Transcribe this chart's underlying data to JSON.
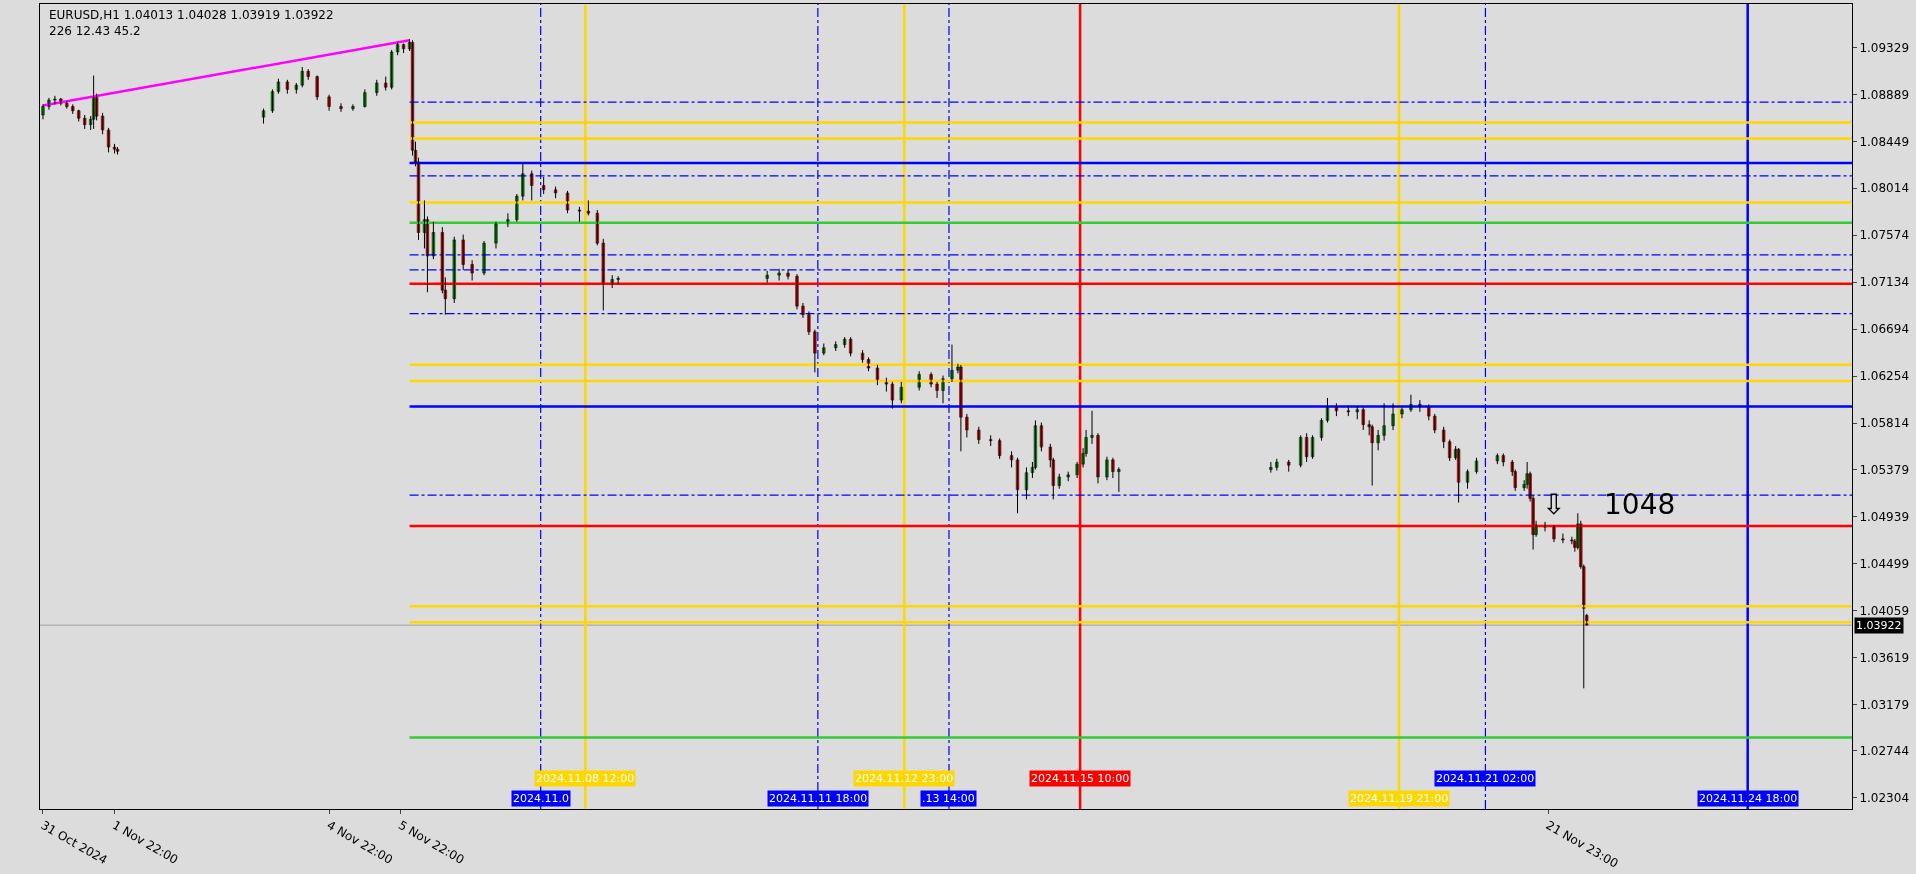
{
  "chart_data": {
    "type": "candlestick",
    "title": "EURUSD,H1 1.04013 1.04028 1.03919 1.03922",
    "subtitle": "226 12.43 45.2",
    "x": [
      "2024-10-31T22:00",
      "2024-11-01T00:00",
      "2024-11-01T02:00",
      "2024-11-01T04:00",
      "2024-11-01T06:00",
      "2024-11-01T08:00",
      "2024-11-01T10:00",
      "2024-11-01T12:00",
      "2024-11-01T14:00",
      "2024-11-01T15:00",
      "2024-11-01T16:00",
      "2024-11-01T18:00",
      "2024-11-01T20:00",
      "2024-11-01T22:00",
      "2024-11-01T23:00",
      "2024-11-04T00:00",
      "2024-11-04T03:00",
      "2024-11-04T05:00",
      "2024-11-04T08:00",
      "2024-11-04T11:00",
      "2024-11-04T13:00",
      "2024-11-04T15:00",
      "2024-11-04T18:00",
      "2024-11-04T22:00",
      "2024-11-05T02:00",
      "2024-11-05T06:00",
      "2024-11-05T10:00",
      "2024-11-05T14:00",
      "2024-11-05T17:00",
      "2024-11-05T19:00",
      "2024-11-05T21:00",
      "2024-11-05T23:00",
      "2024-11-06T01:00",
      "2024-11-06T02:00",
      "2024-11-06T03:00",
      "2024-11-06T04:00",
      "2024-11-06T06:00",
      "2024-11-06T07:00",
      "2024-11-06T09:00",
      "2024-11-06T12:00",
      "2024-11-06T13:00",
      "2024-11-06T16:00",
      "2024-11-06T19:00",
      "2024-11-06T22:00",
      "2024-11-07T02:00",
      "2024-11-07T06:00",
      "2024-11-07T10:00",
      "2024-11-07T13:00",
      "2024-11-07T15:00",
      "2024-11-07T18:00",
      "2024-11-07T22:00",
      "2024-11-08T02:00",
      "2024-11-08T06:00",
      "2024-11-08T10:00",
      "2024-11-08T13:00",
      "2024-11-08T16:00",
      "2024-11-08T18:00",
      "2024-11-08T21:00",
      "2024-11-08T23:00",
      "2024-11-11T01:00",
      "2024-11-11T05:00",
      "2024-11-11T08:00",
      "2024-11-11T11:00",
      "2024-11-11T13:00",
      "2024-11-11T15:00",
      "2024-11-11T17:00",
      "2024-11-11T20:00",
      "2024-11-12T00:00",
      "2024-11-12T03:00",
      "2024-11-12T05:00",
      "2024-11-12T09:00",
      "2024-11-12T11:00",
      "2024-11-12T14:00",
      "2024-11-12T17:00",
      "2024-11-12T19:00",
      "2024-11-12T22:00",
      "2024-11-13T04:00",
      "2024-11-13T08:00",
      "2024-11-13T10:00",
      "2024-11-13T12:00",
      "2024-11-13T15:00",
      "2024-11-13T17:00",
      "2024-11-13T18:00",
      "2024-11-13T20:00",
      "2024-11-14T00:00",
      "2024-11-14T04:00",
      "2024-11-14T07:00",
      "2024-11-14T11:00",
      "2024-11-14T13:00",
      "2024-11-14T16:00",
      "2024-11-14T18:00",
      "2024-11-14T19:00",
      "2024-11-14T21:00",
      "2024-11-15T00:00",
      "2024-11-15T01:00",
      "2024-11-15T03:00",
      "2024-11-15T06:00",
      "2024-11-15T09:00",
      "2024-11-15T11:00",
      "2024-11-15T12:00",
      "2024-11-15T14:00",
      "2024-11-15T16:00",
      "2024-11-15T19:00",
      "2024-11-15T21:00",
      "2024-11-15T23:00",
      "2024-11-18T02:00",
      "2024-11-18T04:00",
      "2024-11-18T08:00",
      "2024-11-18T12:00",
      "2024-11-18T14:00",
      "2024-11-18T16:00",
      "2024-11-18T19:00",
      "2024-11-18T21:00",
      "2024-11-19T00:00",
      "2024-11-19T04:00",
      "2024-11-19T07:00",
      "2024-11-19T09:00",
      "2024-11-19T11:00",
      "2024-11-19T12:00",
      "2024-11-19T14:00",
      "2024-11-19T16:00",
      "2024-11-19T19:00",
      "2024-11-19T22:00",
      "2024-11-20T01:00",
      "2024-11-20T04:00",
      "2024-11-20T07:00",
      "2024-11-20T09:00",
      "2024-11-20T12:00",
      "2024-11-20T14:00",
      "2024-11-20T16:00",
      "2024-11-20T17:00",
      "2024-11-20T20:00",
      "2024-11-20T23:00",
      "2024-11-21T06:00",
      "2024-11-21T08:00",
      "2024-11-21T11:00",
      "2024-11-21T12:00",
      "2024-11-21T15:00",
      "2024-11-21T16:00",
      "2024-11-21T17:00",
      "2024-11-21T18:00",
      "2024-11-21T19:00",
      "2024-11-21T22:00",
      "2024-11-22T01:00",
      "2024-11-22T04:00",
      "2024-11-22T07:00",
      "2024-11-22T08:00",
      "2024-11-22T09:00",
      "2024-11-22T10:00",
      "2024-11-22T11:00",
      "2024-11-22T12:00"
    ],
    "ohlc": [
      [
        1.087,
        1.088,
        1.0866,
        1.0878
      ],
      [
        1.0878,
        1.0886,
        1.0875,
        1.0884
      ],
      [
        1.0884,
        1.0888,
        1.088,
        1.0885
      ],
      [
        1.0885,
        1.0886,
        1.0879,
        1.0881
      ],
      [
        1.0881,
        1.0883,
        1.0876,
        1.0878
      ],
      [
        1.0878,
        1.088,
        1.0871,
        1.0874
      ],
      [
        1.0874,
        1.0875,
        1.0864,
        1.0867
      ],
      [
        1.0867,
        1.087,
        1.0857,
        1.0861
      ],
      [
        1.0861,
        1.0869,
        1.0856,
        1.0866
      ],
      [
        1.0866,
        1.0907,
        1.0857,
        1.0887
      ],
      [
        1.0887,
        1.089,
        1.0865,
        1.0869
      ],
      [
        1.0869,
        1.0872,
        1.0852,
        1.0856
      ],
      [
        1.0856,
        1.0858,
        1.0835,
        1.084
      ],
      [
        1.084,
        1.0843,
        1.0834,
        1.0838
      ],
      [
        1.0838,
        1.084,
        1.0833,
        1.0836
      ],
      [
        1.0868,
        1.0876,
        1.0862,
        1.0874
      ],
      [
        1.0874,
        1.0894,
        1.0872,
        1.0892
      ],
      [
        1.0892,
        1.0904,
        1.089,
        1.0901
      ],
      [
        1.0901,
        1.0903,
        1.089,
        1.0894
      ],
      [
        1.0894,
        1.09,
        1.089,
        1.0898
      ],
      [
        1.0898,
        1.0915,
        1.0896,
        1.0911
      ],
      [
        1.0911,
        1.0913,
        1.0903,
        1.0906
      ],
      [
        1.0906,
        1.0907,
        1.0884,
        1.0887
      ],
      [
        1.0887,
        1.0889,
        1.0874,
        1.0878
      ],
      [
        1.0878,
        1.0881,
        1.0873,
        1.0876
      ],
      [
        1.0876,
        1.088,
        1.0874,
        1.0878
      ],
      [
        1.0878,
        1.0894,
        1.0877,
        1.0891
      ],
      [
        1.0891,
        1.0903,
        1.0888,
        1.09
      ],
      [
        1.09,
        1.0906,
        1.0893,
        1.0896
      ],
      [
        1.0896,
        1.0931,
        1.0894,
        1.0929
      ],
      [
        1.0929,
        1.0938,
        1.0926,
        1.0936
      ],
      [
        1.0936,
        1.0937,
        1.0928,
        1.0932
      ],
      [
        1.0932,
        1.0941,
        1.093,
        1.0938
      ],
      [
        1.0938,
        1.094,
        1.0832,
        1.0837
      ],
      [
        1.0837,
        1.0845,
        1.0822,
        1.0826
      ],
      [
        1.0826,
        1.083,
        1.0753,
        1.076
      ],
      [
        1.076,
        1.079,
        1.0745,
        1.0772
      ],
      [
        1.0772,
        1.0775,
        1.0704,
        1.0738
      ],
      [
        1.0738,
        1.077,
        1.0735,
        1.076
      ],
      [
        1.076,
        1.0765,
        1.0703,
        1.0706
      ],
      [
        1.0706,
        1.0718,
        1.0683,
        1.0698
      ],
      [
        1.0698,
        1.0756,
        1.0694,
        1.0753
      ],
      [
        1.0753,
        1.0758,
        1.0725,
        1.073
      ],
      [
        1.073,
        1.0734,
        1.0715,
        1.0722
      ],
      [
        1.0722,
        1.0752,
        1.072,
        1.075
      ],
      [
        1.075,
        1.077,
        1.0745,
        1.0768
      ],
      [
        1.0768,
        1.0778,
        1.0765,
        1.0772
      ],
      [
        1.0772,
        1.0796,
        1.077,
        1.0794
      ],
      [
        1.0794,
        1.0825,
        1.079,
        1.0815
      ],
      [
        1.0815,
        1.0818,
        1.079,
        1.0804
      ],
      [
        1.0804,
        1.0812,
        1.0796,
        1.08
      ],
      [
        1.08,
        1.0803,
        1.0792,
        1.0797
      ],
      [
        1.0797,
        1.0799,
        1.0778,
        1.0781
      ],
      [
        1.0781,
        1.0784,
        1.077,
        1.078
      ],
      [
        1.078,
        1.079,
        1.0776,
        1.0778
      ],
      [
        1.0778,
        1.0781,
        1.0748,
        1.075
      ],
      [
        1.075,
        1.0754,
        1.0687,
        1.0713
      ],
      [
        1.0713,
        1.072,
        1.0708,
        1.0716
      ],
      [
        1.0716,
        1.0719,
        1.0712,
        1.0717
      ],
      [
        1.0717,
        1.0724,
        1.0713,
        1.072
      ],
      [
        1.072,
        1.0726,
        1.0715,
        1.0722
      ],
      [
        1.0722,
        1.0725,
        1.0716,
        1.0719
      ],
      [
        1.0719,
        1.0721,
        1.0688,
        1.0691
      ],
      [
        1.0691,
        1.0694,
        1.068,
        1.0683
      ],
      [
        1.0683,
        1.0686,
        1.0664,
        1.0667
      ],
      [
        1.0667,
        1.0669,
        1.0629,
        1.0647
      ],
      [
        1.0647,
        1.0656,
        1.0645,
        1.0652
      ],
      [
        1.0652,
        1.0658,
        1.0649,
        1.0655
      ],
      [
        1.0655,
        1.0662,
        1.0652,
        1.066
      ],
      [
        1.066,
        1.0662,
        1.0644,
        1.0647
      ],
      [
        1.0647,
        1.065,
        1.0638,
        1.0641
      ],
      [
        1.0641,
        1.0643,
        1.063,
        1.0633
      ],
      [
        1.0633,
        1.0636,
        1.0617,
        1.0621
      ],
      [
        1.0621,
        1.0624,
        1.0611,
        1.0618
      ],
      [
        1.0618,
        1.062,
        1.0595,
        1.0603
      ],
      [
        1.0603,
        1.062,
        1.06,
        1.0615
      ],
      [
        1.0615,
        1.063,
        1.0612,
        1.0627
      ],
      [
        1.0627,
        1.0629,
        1.0615,
        1.0618
      ],
      [
        1.0618,
        1.062,
        1.0605,
        1.0612
      ],
      [
        1.0612,
        1.0626,
        1.06,
        1.0623
      ],
      [
        1.0623,
        1.0655,
        1.062,
        1.0631
      ],
      [
        1.0631,
        1.0637,
        1.0628,
        1.0634
      ],
      [
        1.0634,
        1.0636,
        1.0555,
        1.0587
      ],
      [
        1.0587,
        1.059,
        1.0568,
        1.0575
      ],
      [
        1.0575,
        1.0578,
        1.0562,
        1.0566
      ],
      [
        1.0566,
        1.057,
        1.056,
        1.0565
      ],
      [
        1.0565,
        1.0567,
        1.0548,
        1.0551
      ],
      [
        1.0551,
        1.0555,
        1.054,
        1.0547
      ],
      [
        1.0547,
        1.0549,
        1.0497,
        1.0519
      ],
      [
        1.0519,
        1.054,
        1.051,
        1.0535
      ],
      [
        1.0535,
        1.0545,
        1.053,
        1.054
      ],
      [
        1.054,
        1.0584,
        1.0538,
        1.0579
      ],
      [
        1.0579,
        1.0582,
        1.0555,
        1.0559
      ],
      [
        1.0559,
        1.0562,
        1.054,
        1.0547
      ],
      [
        1.0547,
        1.0549,
        1.051,
        1.0523
      ],
      [
        1.0523,
        1.0534,
        1.052,
        1.0531
      ],
      [
        1.0531,
        1.0536,
        1.0527,
        1.0533
      ],
      [
        1.0533,
        1.0545,
        1.053,
        1.0543
      ],
      [
        1.0543,
        1.0558,
        1.054,
        1.0553
      ],
      [
        1.0553,
        1.0575,
        1.055,
        1.0568
      ],
      [
        1.0568,
        1.0593,
        1.0562,
        1.057
      ],
      [
        1.057,
        1.0572,
        1.0525,
        1.0531
      ],
      [
        1.0531,
        1.055,
        1.0528,
        1.0547
      ],
      [
        1.0547,
        1.0549,
        1.053,
        1.0536
      ],
      [
        1.0536,
        1.054,
        1.0517,
        1.0538
      ],
      [
        1.0538,
        1.0545,
        1.0535,
        1.054
      ],
      [
        1.054,
        1.0548,
        1.0537,
        1.0545
      ],
      [
        1.0545,
        1.0547,
        1.0536,
        1.0542
      ],
      [
        1.0542,
        1.057,
        1.054,
        1.0568
      ],
      [
        1.0568,
        1.0572,
        1.0545,
        1.055
      ],
      [
        1.055,
        1.057,
        1.0548,
        1.0568
      ],
      [
        1.0568,
        1.0586,
        1.0565,
        1.0584
      ],
      [
        1.0584,
        1.0605,
        1.0582,
        1.0597
      ],
      [
        1.0597,
        1.06,
        1.0588,
        1.0593
      ],
      [
        1.0593,
        1.0598,
        1.0588,
        1.0592
      ],
      [
        1.0592,
        1.0597,
        1.0585,
        1.0594
      ],
      [
        1.0594,
        1.0596,
        1.0575,
        1.058
      ],
      [
        1.058,
        1.0584,
        1.057,
        1.0578
      ],
      [
        1.0578,
        1.058,
        1.0523,
        1.0563
      ],
      [
        1.0563,
        1.0575,
        1.0556,
        1.057
      ],
      [
        1.057,
        1.06,
        1.0565,
        1.0579
      ],
      [
        1.0579,
        1.06,
        1.0575,
        1.059
      ],
      [
        1.059,
        1.0596,
        1.0586,
        1.0594
      ],
      [
        1.0594,
        1.0608,
        1.0592,
        1.0599
      ],
      [
        1.0599,
        1.0603,
        1.0592,
        1.0597
      ],
      [
        1.0597,
        1.0599,
        1.0584,
        1.0588
      ],
      [
        1.0588,
        1.059,
        1.0572,
        1.0575
      ],
      [
        1.0575,
        1.0578,
        1.0558,
        1.0564
      ],
      [
        1.0564,
        1.0566,
        1.0546,
        1.0549
      ],
      [
        1.0549,
        1.056,
        1.0547,
        1.0557
      ],
      [
        1.0557,
        1.0558,
        1.0507,
        1.0526
      ],
      [
        1.0526,
        1.0538,
        1.052,
        1.0536
      ],
      [
        1.0536,
        1.0549,
        1.0534,
        1.0546
      ],
      [
        1.0546,
        1.0553,
        1.0543,
        1.0551
      ],
      [
        1.0551,
        1.0553,
        1.0541,
        1.0545
      ],
      [
        1.0545,
        1.0547,
        1.0532,
        1.0536
      ],
      [
        1.0536,
        1.0538,
        1.0518,
        1.0521
      ],
      [
        1.0521,
        1.0528,
        1.0518,
        1.0524
      ],
      [
        1.0524,
        1.0545,
        1.052,
        1.0534
      ],
      [
        1.0534,
        1.0536,
        1.0508,
        1.0511
      ],
      [
        1.0511,
        1.0514,
        1.0463,
        1.0477
      ],
      [
        1.0477,
        1.049,
        1.0475,
        1.0486
      ],
      [
        1.0486,
        1.0489,
        1.048,
        1.0484
      ],
      [
        1.0484,
        1.0486,
        1.047,
        1.0473
      ],
      [
        1.0473,
        1.0478,
        1.0469,
        1.0472
      ],
      [
        1.0472,
        1.0475,
        1.0468,
        1.0471
      ],
      [
        1.0471,
        1.0473,
        1.0461,
        1.0465
      ],
      [
        1.0465,
        1.0497,
        1.0463,
        1.0487
      ],
      [
        1.0487,
        1.049,
        1.0445,
        1.0447
      ],
      [
        1.0447,
        1.0449,
        1.0333,
        1.0408
      ],
      [
        1.04013,
        1.04028,
        1.03919,
        1.03922
      ]
    ],
    "series": [
      {
        "type": "line",
        "color": "#ff00ff",
        "x": [
          "2024-10-31T22:00",
          "2024-11-06T01:00"
        ],
        "values": [
          1.0879,
          1.094
        ],
        "line_style": "solid"
      },
      {
        "type": "line",
        "color": "#0000ff",
        "x": [
          "2024-11-06T01:00",
          "2024-11-26T05:00"
        ],
        "values": [
          1.0882,
          1.0882
        ],
        "line_style": "dashed"
      },
      {
        "type": "line",
        "color": "#ffd700",
        "x": [
          "2024-11-06T01:00",
          "2024-11-26T05:00"
        ],
        "values": [
          1.0863,
          1.0863
        ],
        "line_style": "solid"
      },
      {
        "type": "line",
        "color": "#ffd700",
        "x": [
          "2024-11-06T01:00",
          "2024-11-26T05:00"
        ],
        "values": [
          1.0848,
          1.0848
        ],
        "line_style": "solid"
      },
      {
        "type": "line",
        "color": "#0000ff",
        "x": [
          "2024-11-06T01:00",
          "2024-11-26T05:00"
        ],
        "values": [
          1.0825,
          1.0825
        ],
        "line_style": "solid"
      },
      {
        "type": "line",
        "color": "#0000ff",
        "x": [
          "2024-11-06T01:00",
          "2024-11-26T05:00"
        ],
        "values": [
          1.0813,
          1.0813
        ],
        "line_style": "dashed"
      },
      {
        "type": "line",
        "color": "#ffd700",
        "x": [
          "2024-11-06T01:00",
          "2024-11-26T05:00"
        ],
        "values": [
          1.0788,
          1.0788
        ],
        "line_style": "solid"
      },
      {
        "type": "line",
        "color": "#32cd32",
        "x": [
          "2024-11-06T01:00",
          "2024-11-26T05:00"
        ],
        "values": [
          1.0769,
          1.0769
        ],
        "line_style": "solid"
      },
      {
        "type": "line",
        "color": "#0000ff",
        "x": [
          "2024-11-06T01:00",
          "2024-11-26T05:00"
        ],
        "values": [
          1.0739,
          1.0739
        ],
        "line_style": "dashed"
      },
      {
        "type": "line",
        "color": "#0000ff",
        "x": [
          "2024-11-06T01:00",
          "2024-11-26T05:00"
        ],
        "values": [
          1.0725,
          1.0725
        ],
        "line_style": "dashed"
      },
      {
        "type": "line",
        "color": "#ff0000",
        "x": [
          "2024-11-06T01:00",
          "2024-11-26T05:00"
        ],
        "values": [
          1.0712,
          1.0712
        ],
        "line_style": "solid"
      },
      {
        "type": "line",
        "color": "#0000ff",
        "x": [
          "2024-11-06T01:00",
          "2024-11-26T05:00"
        ],
        "values": [
          1.0684,
          1.0684
        ],
        "line_style": "dashed"
      },
      {
        "type": "line",
        "color": "#ffd700",
        "x": [
          "2024-11-06T01:00",
          "2024-11-26T05:00"
        ],
        "values": [
          1.0636,
          1.0636
        ],
        "line_style": "solid"
      },
      {
        "type": "line",
        "color": "#ffd700",
        "x": [
          "2024-11-06T01:00",
          "2024-11-26T05:00"
        ],
        "values": [
          1.0621,
          1.0621
        ],
        "line_style": "solid"
      },
      {
        "type": "line",
        "color": "#0000ff",
        "x": [
          "2024-11-06T01:00",
          "2024-11-26T05:00"
        ],
        "values": [
          1.0597,
          1.0597
        ],
        "line_style": "solid"
      },
      {
        "type": "line",
        "color": "#0000ff",
        "x": [
          "2024-11-06T01:00",
          "2024-11-26T05:00"
        ],
        "values": [
          1.0514,
          1.0514
        ],
        "line_style": "dashed"
      },
      {
        "type": "line",
        "color": "#ff0000",
        "x": [
          "2024-11-06T01:00",
          "2024-11-26T05:00"
        ],
        "values": [
          1.0485,
          1.0485
        ],
        "line_style": "solid"
      },
      {
        "type": "line",
        "color": "#ffd700",
        "x": [
          "2024-11-06T01:00",
          "2024-11-26T05:00"
        ],
        "values": [
          1.041,
          1.041
        ],
        "line_style": "solid"
      },
      {
        "type": "line",
        "color": "#ffd700",
        "x": [
          "2024-11-06T01:00",
          "2024-11-26T05:00"
        ],
        "values": [
          1.0395,
          1.0395
        ],
        "line_style": "solid"
      },
      {
        "type": "line",
        "color": "#32cd32",
        "x": [
          "2024-11-06T01:00",
          "2024-11-26T05:00"
        ],
        "values": [
          1.0287,
          1.0287
        ],
        "line_style": "solid"
      }
    ],
    "ref_lines": [
      {
        "axis": "y",
        "value": 1.03922,
        "label": "1.03922",
        "color": "#9a9aa8",
        "line_style": "solid"
      },
      {
        "axis": "x",
        "value": "2024-11-07T21:00",
        "label": "2024.11.0",
        "color": "#0000ff",
        "line_style": "dashed"
      },
      {
        "axis": "x",
        "value": "2024-11-08T12:00",
        "label": "2024.11.08 12:00",
        "color": "#ffd700",
        "line_style": "solid"
      },
      {
        "axis": "x",
        "value": "2024-11-11T18:00",
        "label": "2024.11.11 18:00",
        "color": "#0000ff",
        "line_style": "dashed"
      },
      {
        "axis": "x",
        "value": "2024-11-12T23:00",
        "label": "2024.11.12 23:00",
        "color": "#ffd700",
        "line_style": "solid"
      },
      {
        "axis": "x",
        "value": "2024-11-13T14:00",
        "label": ".13 14:00",
        "color": "#0000ff",
        "line_style": "dashed"
      },
      {
        "axis": "x",
        "value": "2024-11-15T10:00",
        "label": "2024.11.15 10:00",
        "color": "#ff0000",
        "line_style": "solid"
      },
      {
        "axis": "x",
        "value": "2024-11-19T21:00",
        "label": "2024.11.19 21:00",
        "color": "#ffd700",
        "line_style": "solid"
      },
      {
        "axis": "x",
        "value": "2024-11-21T02:00",
        "label": "2024.11.21 02:00",
        "color": "#0000ff",
        "line_style": "dashed"
      },
      {
        "axis": "x",
        "value": "2024-11-24T18:00",
        "label": "2024.11.24 18:00",
        "color": "#0000ff",
        "line_style": "solid"
      }
    ],
    "annotations": [
      "⇩",
      "1048"
    ],
    "xlim": [
      "2024-10-31T21:00",
      "2024-11-26T05:00"
    ],
    "xticks": [
      {
        "value": "2024-10-31T22:00",
        "label": "31 Oct 2024"
      },
      {
        "value": "2024-11-01T22:00",
        "label": "1 Nov 22:00"
      },
      {
        "value": "2024-11-04T22:00",
        "label": "4 Nov 22:00"
      },
      {
        "value": "2024-11-05T22:00",
        "label": "5 Nov 22:00"
      },
      {
        "value": "2024-11-21T23:00",
        "label": "21 Nov 23:00"
      }
    ],
    "ylim": [
      1.022,
      1.0974
    ],
    "yticks": [
      1.09329,
      1.08889,
      1.08449,
      1.08014,
      1.07574,
      1.07134,
      1.06694,
      1.06254,
      1.05814,
      1.05379,
      1.04939,
      1.04499,
      1.04059,
      1.03619,
      1.03179,
      1.02744,
      1.02304
    ],
    "grid": false
  }
}
